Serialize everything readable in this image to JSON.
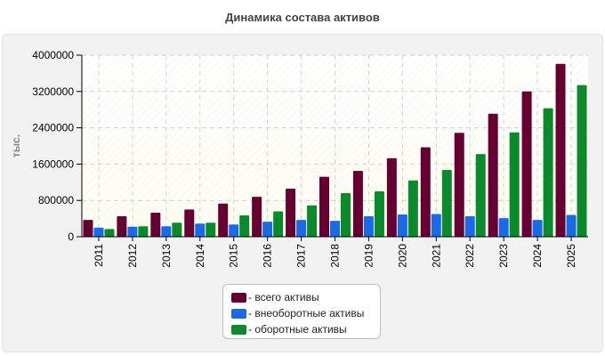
{
  "title": "Динамика состава активов",
  "chart_data": {
    "type": "bar",
    "title": "Динамика состава активов",
    "xlabel": "",
    "ylabel": "тыс.",
    "ylim": [
      0,
      4000000
    ],
    "yticks": [
      0,
      800000,
      1600000,
      2400000,
      3200000,
      4000000
    ],
    "ytick_labels": [
      "0",
      "800000",
      "1600000",
      "2400000",
      "3200000",
      "4000000"
    ],
    "grid": true,
    "legend_position": "bottom-center",
    "categories": [
      "2011",
      "2012",
      "2013",
      "2014",
      "2015",
      "2016",
      "2017",
      "2018",
      "2019",
      "2020",
      "2021",
      "2022",
      "2023",
      "2024",
      "2025"
    ],
    "series": [
      {
        "name": "- всего активы",
        "color": "#660033",
        "values": [
          370000,
          450000,
          530000,
          600000,
          730000,
          880000,
          1060000,
          1320000,
          1450000,
          1730000,
          1970000,
          2290000,
          2710000,
          3200000,
          3810000
        ]
      },
      {
        "name": "- внеоборотные активы",
        "color": "#1a6ae8",
        "values": [
          200000,
          220000,
          230000,
          290000,
          270000,
          330000,
          370000,
          350000,
          450000,
          490000,
          500000,
          450000,
          410000,
          370000,
          480000
        ]
      },
      {
        "name": "- оборотные активы",
        "color": "#0a8a2a",
        "values": [
          170000,
          230000,
          310000,
          310000,
          470000,
          560000,
          690000,
          960000,
          1000000,
          1240000,
          1470000,
          1820000,
          2300000,
          2830000,
          3340000
        ]
      }
    ]
  },
  "legend": {
    "items": [
      {
        "label": "- всего активы",
        "color": "#660033"
      },
      {
        "label": "- внеоборотные активы",
        "color": "#1a6ae8"
      },
      {
        "label": "- оборотные активы",
        "color": "#0a8a2a"
      }
    ]
  }
}
